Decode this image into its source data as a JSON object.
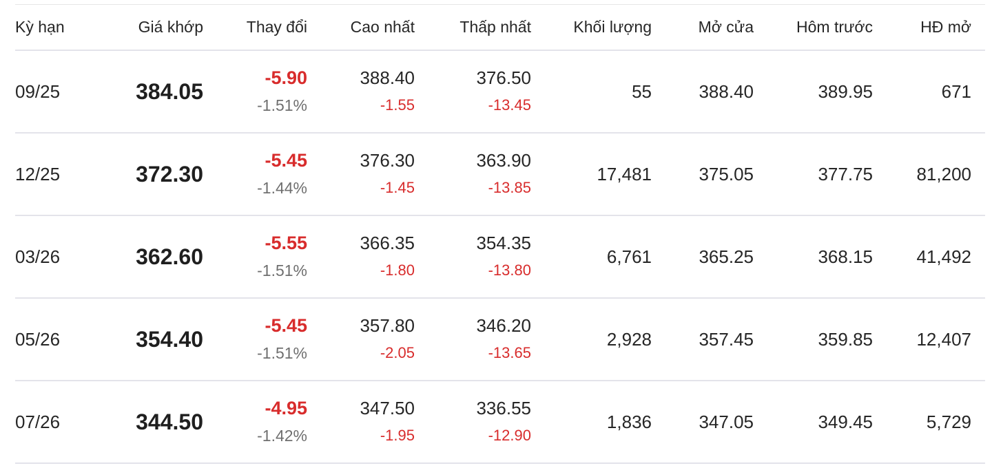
{
  "headers": {
    "term": "Kỳ hạn",
    "price": "Giá khớp",
    "change": "Thay đổi",
    "high": "Cao nhất",
    "low": "Thấp nhất",
    "volume": "Khối lượng",
    "open": "Mở cửa",
    "prev": "Hôm trước",
    "oi": "HĐ mở"
  },
  "rows": [
    {
      "term": "09/25",
      "price": "384.05",
      "change": "-5.90",
      "change_pct": "-1.51%",
      "high": "388.40",
      "high_diff": "-1.55",
      "low": "376.50",
      "low_diff": "-13.45",
      "volume": "55",
      "open": "388.40",
      "prev": "389.95",
      "oi": "671"
    },
    {
      "term": "12/25",
      "price": "372.30",
      "change": "-5.45",
      "change_pct": "-1.44%",
      "high": "376.30",
      "high_diff": "-1.45",
      "low": "363.90",
      "low_diff": "-13.85",
      "volume": "17,481",
      "open": "375.05",
      "prev": "377.75",
      "oi": "81,200"
    },
    {
      "term": "03/26",
      "price": "362.60",
      "change": "-5.55",
      "change_pct": "-1.51%",
      "high": "366.35",
      "high_diff": "-1.80",
      "low": "354.35",
      "low_diff": "-13.80",
      "volume": "6,761",
      "open": "365.25",
      "prev": "368.15",
      "oi": "41,492"
    },
    {
      "term": "05/26",
      "price": "354.40",
      "change": "-5.45",
      "change_pct": "-1.51%",
      "high": "357.80",
      "high_diff": "-2.05",
      "low": "346.20",
      "low_diff": "-13.65",
      "volume": "2,928",
      "open": "357.45",
      "prev": "359.85",
      "oi": "12,407"
    },
    {
      "term": "07/26",
      "price": "344.50",
      "change": "-4.95",
      "change_pct": "-1.42%",
      "high": "347.50",
      "high_diff": "-1.95",
      "low": "336.55",
      "low_diff": "-12.90",
      "volume": "1,836",
      "open": "347.05",
      "prev": "349.45",
      "oi": "5,729"
    }
  ],
  "colors": {
    "negative": "#d82c2c",
    "muted": "#6f6f6f",
    "divider": "#e3e3ea"
  }
}
